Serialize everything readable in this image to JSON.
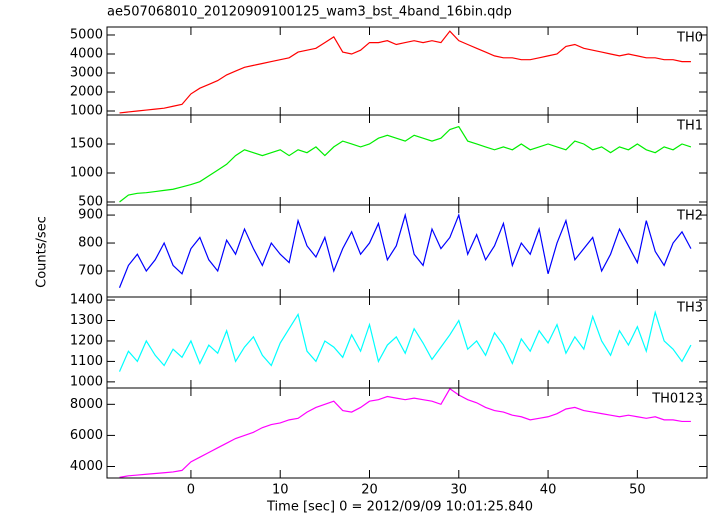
{
  "chart_data": [
    {
      "type": "line",
      "title": "ae507068010_20120909100125_wam3_bst_4band_16bin.qdp",
      "label": "TH0",
      "color": "#ff0000",
      "x": [
        -8,
        -7,
        -6,
        -5,
        -4,
        -3,
        -2,
        -1,
        0,
        1,
        2,
        3,
        4,
        5,
        6,
        7,
        8,
        9,
        10,
        11,
        12,
        13,
        14,
        15,
        16,
        17,
        18,
        19,
        20,
        21,
        22,
        23,
        24,
        25,
        26,
        27,
        28,
        29,
        30,
        31,
        32,
        33,
        34,
        35,
        36,
        37,
        38,
        39,
        40,
        41,
        42,
        43,
        44,
        45,
        46,
        47,
        48,
        49,
        50,
        51,
        52,
        53,
        54,
        55,
        56
      ],
      "values": [
        900,
        950,
        1000,
        1050,
        1100,
        1150,
        1250,
        1350,
        1900,
        2200,
        2400,
        2600,
        2900,
        3100,
        3300,
        3400,
        3500,
        3600,
        3700,
        3800,
        4100,
        4200,
        4300,
        4600,
        4900,
        4100,
        4000,
        4200,
        4600,
        4600,
        4700,
        4500,
        4600,
        4700,
        4600,
        4700,
        4600,
        5200,
        4700,
        4500,
        4300,
        4100,
        3900,
        3800,
        3800,
        3700,
        3700,
        3800,
        3900,
        4000,
        4400,
        4500,
        4300,
        4200,
        4100,
        4000,
        3900,
        4000,
        3900,
        3800,
        3800,
        3700,
        3700,
        3600,
        3600
      ],
      "ylim": [
        790,
        5420
      ],
      "yticks": [
        1000,
        2000,
        3000,
        4000,
        5000
      ]
    },
    {
      "type": "line",
      "label": "TH1",
      "color": "#00ee00",
      "x": [
        -8,
        -7,
        -6,
        -5,
        -4,
        -3,
        -2,
        -1,
        0,
        1,
        2,
        3,
        4,
        5,
        6,
        7,
        8,
        9,
        10,
        11,
        12,
        13,
        14,
        15,
        16,
        17,
        18,
        19,
        20,
        21,
        22,
        23,
        24,
        25,
        26,
        27,
        28,
        29,
        30,
        31,
        32,
        33,
        34,
        35,
        36,
        37,
        38,
        39,
        40,
        41,
        42,
        43,
        44,
        45,
        46,
        47,
        48,
        49,
        50,
        51,
        52,
        53,
        54,
        55,
        56
      ],
      "values": [
        500,
        620,
        650,
        660,
        680,
        700,
        720,
        760,
        800,
        850,
        950,
        1050,
        1150,
        1300,
        1400,
        1350,
        1300,
        1350,
        1400,
        1300,
        1400,
        1350,
        1450,
        1300,
        1450,
        1550,
        1500,
        1450,
        1500,
        1600,
        1650,
        1600,
        1550,
        1650,
        1600,
        1550,
        1600,
        1750,
        1800,
        1550,
        1500,
        1450,
        1400,
        1450,
        1400,
        1500,
        1400,
        1450,
        1500,
        1450,
        1400,
        1550,
        1500,
        1400,
        1450,
        1350,
        1450,
        1400,
        1500,
        1400,
        1350,
        1450,
        1400,
        1500,
        1450
      ],
      "ylim": [
        448,
        2000
      ],
      "yticks": [
        500,
        1000,
        1500
      ]
    },
    {
      "type": "line",
      "label": "TH2",
      "color": "#0000ff",
      "ylabel": "Counts/sec",
      "x": [
        -8,
        -7,
        -6,
        -5,
        -4,
        -3,
        -2,
        -1,
        0,
        1,
        2,
        3,
        4,
        5,
        6,
        7,
        8,
        9,
        10,
        11,
        12,
        13,
        14,
        15,
        16,
        17,
        18,
        19,
        20,
        21,
        22,
        23,
        24,
        25,
        26,
        27,
        28,
        29,
        30,
        31,
        32,
        33,
        34,
        35,
        36,
        37,
        38,
        39,
        40,
        41,
        42,
        43,
        44,
        45,
        46,
        47,
        48,
        49,
        50,
        51,
        52,
        53,
        54,
        55,
        56
      ],
      "values": [
        640,
        720,
        760,
        700,
        740,
        800,
        720,
        690,
        780,
        820,
        740,
        700,
        810,
        760,
        850,
        780,
        720,
        800,
        760,
        730,
        880,
        790,
        750,
        820,
        700,
        780,
        840,
        760,
        800,
        870,
        740,
        790,
        900,
        760,
        720,
        850,
        780,
        820,
        900,
        760,
        830,
        740,
        790,
        870,
        720,
        800,
        760,
        850,
        690,
        800,
        880,
        740,
        780,
        820,
        700,
        760,
        850,
        790,
        730,
        880,
        770,
        720,
        800,
        840,
        780
      ],
      "ylim": [
        607,
        936
      ],
      "yticks": [
        700,
        800,
        900
      ]
    },
    {
      "type": "line",
      "label": "TH3",
      "color": "#00ffff",
      "x": [
        -8,
        -7,
        -6,
        -5,
        -4,
        -3,
        -2,
        -1,
        0,
        1,
        2,
        3,
        4,
        5,
        6,
        7,
        8,
        9,
        10,
        11,
        12,
        13,
        14,
        15,
        16,
        17,
        18,
        19,
        20,
        21,
        22,
        23,
        24,
        25,
        26,
        27,
        28,
        29,
        30,
        31,
        32,
        33,
        34,
        35,
        36,
        37,
        38,
        39,
        40,
        41,
        42,
        43,
        44,
        45,
        46,
        47,
        48,
        49,
        50,
        51,
        52,
        53,
        54,
        55,
        56
      ],
      "values": [
        1050,
        1150,
        1100,
        1200,
        1130,
        1080,
        1160,
        1120,
        1200,
        1090,
        1180,
        1140,
        1250,
        1100,
        1170,
        1220,
        1130,
        1080,
        1190,
        1260,
        1330,
        1150,
        1100,
        1200,
        1170,
        1120,
        1230,
        1150,
        1280,
        1100,
        1180,
        1220,
        1140,
        1260,
        1190,
        1110,
        1170,
        1230,
        1300,
        1160,
        1200,
        1130,
        1240,
        1180,
        1090,
        1210,
        1150,
        1250,
        1190,
        1280,
        1140,
        1220,
        1160,
        1320,
        1200,
        1130,
        1250,
        1180,
        1270,
        1150,
        1340,
        1200,
        1160,
        1100,
        1180
      ],
      "ylim": [
        970,
        1415
      ],
      "yticks": [
        1000,
        1100,
        1200,
        1300,
        1400
      ]
    },
    {
      "type": "line",
      "label": "TH0123",
      "color": "#ff00ff",
      "xlabel": "Time [sec] 0 = 2012/09/09 10:01:25.840",
      "x": [
        -8,
        -7,
        -6,
        -5,
        -4,
        -3,
        -2,
        -1,
        0,
        1,
        2,
        3,
        4,
        5,
        6,
        7,
        8,
        9,
        10,
        11,
        12,
        13,
        14,
        15,
        16,
        17,
        18,
        19,
        20,
        21,
        22,
        23,
        24,
        25,
        26,
        27,
        28,
        29,
        30,
        31,
        32,
        33,
        34,
        35,
        36,
        37,
        38,
        39,
        40,
        41,
        42,
        43,
        44,
        45,
        46,
        47,
        48,
        49,
        50,
        51,
        52,
        53,
        54,
        55,
        56
      ],
      "values": [
        3300,
        3400,
        3450,
        3500,
        3550,
        3600,
        3650,
        3750,
        4300,
        4600,
        4900,
        5200,
        5500,
        5800,
        6000,
        6200,
        6500,
        6700,
        6800,
        7000,
        7100,
        7500,
        7800,
        8000,
        8200,
        7600,
        7500,
        7800,
        8200,
        8300,
        8500,
        8400,
        8300,
        8400,
        8300,
        8200,
        8000,
        9000,
        8600,
        8300,
        8100,
        7800,
        7600,
        7500,
        7300,
        7200,
        7000,
        7100,
        7200,
        7400,
        7700,
        7800,
        7600,
        7500,
        7400,
        7300,
        7200,
        7300,
        7200,
        7100,
        7200,
        7000,
        7000,
        6900,
        6900
      ],
      "ylim": [
        3260,
        9050
      ],
      "yticks": [
        4000,
        6000,
        8000
      ],
      "xlim": [
        -9.4,
        57.8
      ],
      "xticks": [
        0,
        10,
        20,
        30,
        40,
        50
      ]
    }
  ]
}
